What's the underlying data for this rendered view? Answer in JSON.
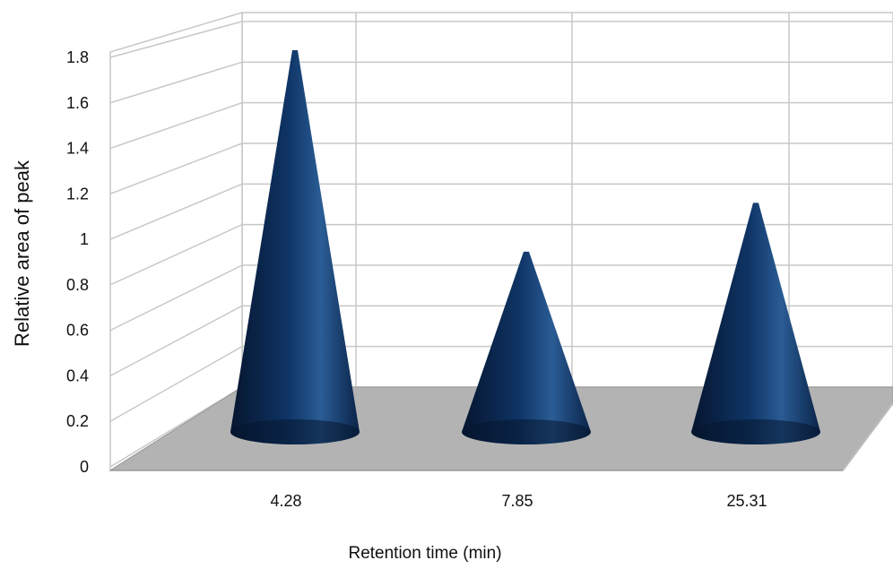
{
  "chart_data": {
    "type": "bar",
    "style": "3d-cone",
    "categories": [
      "4.28",
      "7.85",
      "25.31"
    ],
    "values": [
      1.8,
      0.85,
      1.08
    ],
    "xlabel": "Retention time (min)",
    "ylabel": "Relative area of peak",
    "ylim": [
      0,
      1.8
    ],
    "yticks": [
      "0",
      "0.2",
      "0.4",
      "0.6",
      "0.8",
      "1",
      "1.2",
      "1.4",
      "1.6",
      "1.8"
    ],
    "grid": true,
    "legend": "none",
    "colors": {
      "cone_dark": "#06152e",
      "cone_mid": "#0f3566",
      "cone_light": "#2a5c95",
      "floor": "#b3b3b3",
      "grid": "#c8c8c8"
    }
  }
}
